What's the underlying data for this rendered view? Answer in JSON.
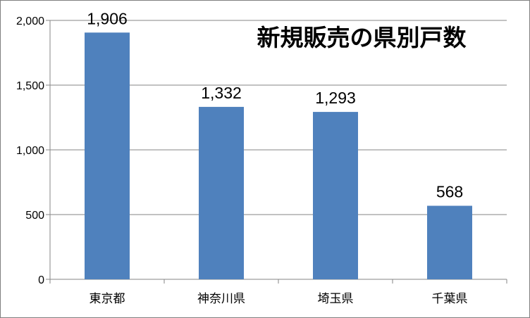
{
  "chart_data": {
    "type": "bar",
    "title": "新規販売の県別戸数",
    "categories": [
      "東京都",
      "神奈川県",
      "埼玉県",
      "千葉県"
    ],
    "values": [
      1906,
      1332,
      1293,
      568
    ],
    "value_labels": [
      "1,906",
      "1,332",
      "1,293",
      "568"
    ],
    "y_ticks": [
      0,
      500,
      1000,
      1500,
      2000
    ],
    "y_tick_labels": [
      "0",
      "500",
      "1,000",
      "1,500",
      "2,000"
    ],
    "ylim": [
      0,
      2000
    ],
    "xlabel": "",
    "ylabel": "",
    "grid": true,
    "legend": "none",
    "bar_color": "#4f81bd"
  }
}
